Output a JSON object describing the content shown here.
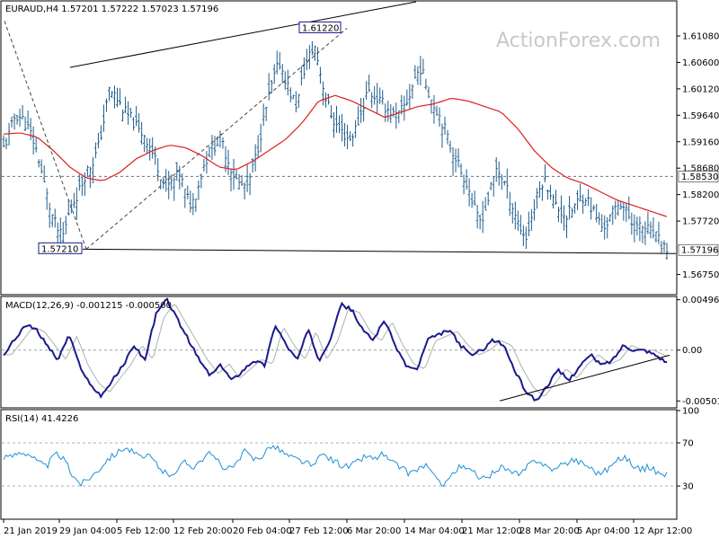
{
  "header": {
    "price_title": "EURAUD,H4  1.57201 1.57222 1.57023 1.57196",
    "macd_title": "MACD(12,26,9) -0.001215 -0.000500",
    "rsi_title": "RSI(14) 41.4226"
  },
  "watermark": "ActionForex.com",
  "colors": {
    "price_bars": "#1f5d8c",
    "ma": "#dd1f1f",
    "macd": "#1a1a8c",
    "signal": "#b0b0b0",
    "rsi": "#1e90d6",
    "trendline": "#000000",
    "dashed": "#707070"
  },
  "chart_data": [
    {
      "type": "ohlc",
      "symbol": "EURAUD",
      "timeframe": "H4",
      "last_ohlc": {
        "open": 1.57201,
        "high": 1.57222,
        "low": 1.57023,
        "close": 1.57196
      },
      "ylim": [
        1.564,
        1.617
      ],
      "y_ticks": [
        "1.61080",
        "1.60600",
        "1.60120",
        "1.59640",
        "1.59160",
        "1.58680",
        "1.58200",
        "1.57720",
        "1.56750"
      ],
      "y_tick_values": [
        1.6108,
        1.606,
        1.6012,
        1.5964,
        1.5916,
        1.5868,
        1.582,
        1.5772,
        1.5675
      ],
      "x_labels": [
        "21 Jan 2019",
        "29 Jan 04:00",
        "5 Feb 12:00",
        "12 Feb 20:00",
        "20 Feb 04:00",
        "27 Feb 12:00",
        "6 Mar 20:00",
        "14 Mar 04:00",
        "21 Mar 12:00",
        "28 Mar 20:00",
        "5 Apr 04:00",
        "12 Apr 12:00"
      ],
      "close_path": [
        1.5905,
        1.593,
        1.5965,
        1.596,
        1.5945,
        1.592,
        1.5885,
        1.5835,
        1.579,
        1.576,
        1.574,
        1.578,
        1.581,
        1.583,
        1.586,
        1.5875,
        1.59,
        1.595,
        1.601,
        1.6,
        1.598,
        1.5965,
        1.5955,
        1.5935,
        1.593,
        1.5905,
        1.588,
        1.585,
        1.5835,
        1.5845,
        1.586,
        1.582,
        1.58,
        1.583,
        1.587,
        1.5895,
        1.591,
        1.592,
        1.589,
        1.586,
        1.584,
        1.5835,
        1.585,
        1.589,
        1.594,
        1.599,
        1.603,
        1.606,
        1.603,
        1.6,
        1.598,
        1.604,
        1.607,
        1.609,
        1.604,
        1.599,
        1.596,
        1.594,
        1.593,
        1.592,
        1.594,
        1.597,
        1.601,
        1.6,
        1.599,
        1.598,
        1.597,
        1.596,
        1.5975,
        1.5995,
        1.603,
        1.605,
        1.602,
        1.599,
        1.597,
        1.5945,
        1.591,
        1.589,
        1.586,
        1.584,
        1.58,
        1.577,
        1.579,
        1.583,
        1.587,
        1.585,
        1.582,
        1.579,
        1.576,
        1.574,
        1.578,
        1.582,
        1.585,
        1.583,
        1.58,
        1.579,
        1.578,
        1.5795,
        1.581,
        1.582,
        1.58,
        1.578,
        1.576,
        1.577,
        1.579,
        1.581,
        1.579,
        1.577,
        1.576,
        1.576,
        1.5755,
        1.5745,
        1.573,
        1.572
      ],
      "ma_path": [
        1.593,
        1.5932,
        1.5925,
        1.59,
        1.587,
        1.585,
        1.5845,
        1.586,
        1.5885,
        1.59,
        1.591,
        1.5905,
        1.589,
        1.587,
        1.5865,
        1.588,
        1.59,
        1.592,
        1.595,
        1.599,
        1.6,
        1.599,
        1.5975,
        1.596,
        1.597,
        1.598,
        1.5985,
        1.5995,
        1.599,
        1.598,
        1.597,
        1.594,
        1.59,
        1.587,
        1.585,
        1.584,
        1.5825,
        1.581,
        1.58,
        1.579,
        1.578
      ],
      "dashed_level": {
        "value": 1.5853,
        "label": "1.58530"
      },
      "current_price": {
        "value": 1.57196,
        "label": "1.57196"
      },
      "annotations": [
        {
          "label": "1.61220",
          "value": 1.6122
        },
        {
          "label": "1.57210",
          "value": 1.5721
        }
      ]
    },
    {
      "type": "line",
      "name": "MACD(12,26,9)",
      "values_printed": {
        "macd": -0.001215,
        "signal": -0.0005
      },
      "ylim": [
        -0.0056,
        0.0052
      ],
      "y_ticks": [
        "0.004965",
        "0.00",
        "-0.005013"
      ],
      "y_tick_values": [
        0.004965,
        0.0,
        -0.005013
      ],
      "macd_path": [
        -0.0005,
        0.001,
        0.0025,
        0.002,
        0.0005,
        -0.001,
        0.0015,
        -0.0015,
        -0.0035,
        -0.0045,
        -0.003,
        -0.0015,
        0.0005,
        -0.001,
        0.0035,
        0.005,
        0.003,
        0.001,
        -0.001,
        -0.0025,
        -0.0015,
        -0.003,
        -0.002,
        -0.001,
        -0.0015,
        0.0025,
        0.0005,
        -0.001,
        0.002,
        -0.001,
        0.001,
        0.0045,
        0.004,
        0.002,
        0.001,
        0.003,
        0.0005,
        -0.0015,
        -0.002,
        0.001,
        0.0015,
        0.002,
        0.0005,
        -0.0005,
        0.0,
        0.001,
        0.0005,
        -0.002,
        -0.004,
        -0.005,
        -0.0035,
        -0.002,
        -0.003,
        -0.0015,
        -0.0005,
        -0.0015,
        -0.001,
        0.0005,
        0.0,
        0.0,
        -0.0005,
        -0.0012
      ],
      "trendline_from": -0.005,
      "trendline_to": -0.0005
    },
    {
      "type": "line",
      "name": "RSI(14)",
      "value_printed": 41.4226,
      "ylim": [
        0,
        100
      ],
      "y_ticks": [
        "100",
        "70",
        "30"
      ],
      "y_tick_values": [
        100,
        70,
        30
      ],
      "levels": [
        70,
        30
      ],
      "rsi_path": [
        55,
        58,
        62,
        60,
        52,
        48,
        60,
        55,
        40,
        32,
        38,
        45,
        55,
        60,
        66,
        62,
        55,
        58,
        48,
        40,
        44,
        52,
        48,
        55,
        60,
        52,
        45,
        50,
        62,
        55,
        58,
        68,
        64,
        58,
        55,
        52,
        48,
        60,
        55,
        50,
        48,
        52,
        58,
        55,
        60,
        52,
        48,
        42,
        45,
        50,
        38,
        32,
        40,
        48,
        45,
        40,
        35,
        45,
        48,
        42,
        40,
        50,
        55,
        48,
        45,
        50,
        55,
        52,
        48,
        42,
        45,
        52,
        58,
        50,
        45,
        48,
        42,
        41
      ]
    }
  ]
}
